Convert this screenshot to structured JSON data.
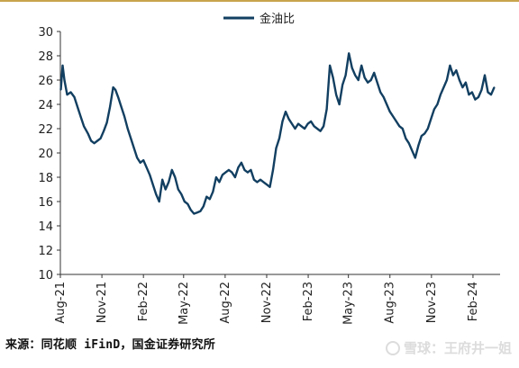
{
  "chart_data": {
    "type": "line",
    "legend_position": "top-center",
    "series": [
      {
        "name": "金油比",
        "color": "#123f61",
        "points": [
          [
            "2021-08-02",
            25.2
          ],
          [
            "2021-08-06",
            27.2
          ],
          [
            "2021-08-10",
            26.0
          ],
          [
            "2021-08-16",
            24.8
          ],
          [
            "2021-08-24",
            25.0
          ],
          [
            "2021-09-01",
            24.6
          ],
          [
            "2021-09-08",
            23.8
          ],
          [
            "2021-09-15",
            23.0
          ],
          [
            "2021-09-22",
            22.2
          ],
          [
            "2021-10-01",
            21.6
          ],
          [
            "2021-10-08",
            21.0
          ],
          [
            "2021-10-15",
            20.8
          ],
          [
            "2021-10-22",
            21.0
          ],
          [
            "2021-10-29",
            21.2
          ],
          [
            "2021-11-05",
            21.8
          ],
          [
            "2021-11-12",
            22.5
          ],
          [
            "2021-11-19",
            23.8
          ],
          [
            "2021-11-26",
            25.4
          ],
          [
            "2021-12-01",
            25.2
          ],
          [
            "2021-12-07",
            24.6
          ],
          [
            "2021-12-14",
            23.8
          ],
          [
            "2021-12-21",
            23.0
          ],
          [
            "2021-12-28",
            22.0
          ],
          [
            "2022-01-04",
            21.2
          ],
          [
            "2022-01-11",
            20.4
          ],
          [
            "2022-01-18",
            19.6
          ],
          [
            "2022-01-25",
            19.2
          ],
          [
            "2022-02-01",
            19.4
          ],
          [
            "2022-02-08",
            18.8
          ],
          [
            "2022-02-15",
            18.2
          ],
          [
            "2022-02-22",
            17.4
          ],
          [
            "2022-03-01",
            16.6
          ],
          [
            "2022-03-08",
            16.0
          ],
          [
            "2022-03-15",
            17.8
          ],
          [
            "2022-03-22",
            17.0
          ],
          [
            "2022-03-29",
            17.6
          ],
          [
            "2022-04-05",
            18.6
          ],
          [
            "2022-04-12",
            18.0
          ],
          [
            "2022-04-19",
            17.0
          ],
          [
            "2022-04-26",
            16.6
          ],
          [
            "2022-05-03",
            16.0
          ],
          [
            "2022-05-10",
            15.8
          ],
          [
            "2022-05-17",
            15.3
          ],
          [
            "2022-05-24",
            15.0
          ],
          [
            "2022-05-31",
            15.1
          ],
          [
            "2022-06-07",
            15.2
          ],
          [
            "2022-06-14",
            15.6
          ],
          [
            "2022-06-21",
            16.4
          ],
          [
            "2022-06-28",
            16.2
          ],
          [
            "2022-07-05",
            16.8
          ],
          [
            "2022-07-12",
            18.0
          ],
          [
            "2022-07-19",
            17.6
          ],
          [
            "2022-07-26",
            18.2
          ],
          [
            "2022-08-02",
            18.4
          ],
          [
            "2022-08-09",
            18.6
          ],
          [
            "2022-08-16",
            18.4
          ],
          [
            "2022-08-23",
            18.0
          ],
          [
            "2022-08-30",
            18.8
          ],
          [
            "2022-09-06",
            19.2
          ],
          [
            "2022-09-13",
            18.6
          ],
          [
            "2022-09-20",
            18.4
          ],
          [
            "2022-09-27",
            18.6
          ],
          [
            "2022-10-04",
            17.8
          ],
          [
            "2022-10-11",
            17.6
          ],
          [
            "2022-10-18",
            17.8
          ],
          [
            "2022-10-25",
            17.6
          ],
          [
            "2022-11-01",
            17.4
          ],
          [
            "2022-11-08",
            17.2
          ],
          [
            "2022-11-15",
            18.6
          ],
          [
            "2022-11-22",
            20.4
          ],
          [
            "2022-11-29",
            21.2
          ],
          [
            "2022-12-06",
            22.6
          ],
          [
            "2022-12-13",
            23.4
          ],
          [
            "2022-12-20",
            22.8
          ],
          [
            "2022-12-27",
            22.4
          ],
          [
            "2023-01-03",
            22.0
          ],
          [
            "2023-01-10",
            22.4
          ],
          [
            "2023-01-17",
            22.2
          ],
          [
            "2023-01-24",
            22.0
          ],
          [
            "2023-01-31",
            22.4
          ],
          [
            "2023-02-07",
            22.6
          ],
          [
            "2023-02-14",
            22.2
          ],
          [
            "2023-02-21",
            22.0
          ],
          [
            "2023-02-28",
            21.8
          ],
          [
            "2023-03-07",
            22.2
          ],
          [
            "2023-03-14",
            23.6
          ],
          [
            "2023-03-21",
            27.2
          ],
          [
            "2023-03-28",
            26.2
          ],
          [
            "2023-04-04",
            24.8
          ],
          [
            "2023-04-11",
            24.0
          ],
          [
            "2023-04-18",
            25.6
          ],
          [
            "2023-04-25",
            26.4
          ],
          [
            "2023-05-02",
            28.2
          ],
          [
            "2023-05-09",
            27.0
          ],
          [
            "2023-05-16",
            26.4
          ],
          [
            "2023-05-23",
            26.0
          ],
          [
            "2023-05-30",
            27.2
          ],
          [
            "2023-06-06",
            26.2
          ],
          [
            "2023-06-13",
            25.8
          ],
          [
            "2023-06-20",
            26.0
          ],
          [
            "2023-06-27",
            26.6
          ],
          [
            "2023-07-04",
            25.8
          ],
          [
            "2023-07-11",
            25.0
          ],
          [
            "2023-07-18",
            24.6
          ],
          [
            "2023-07-25",
            24.0
          ],
          [
            "2023-08-01",
            23.4
          ],
          [
            "2023-08-08",
            23.0
          ],
          [
            "2023-08-15",
            22.6
          ],
          [
            "2023-08-22",
            22.2
          ],
          [
            "2023-08-29",
            22.0
          ],
          [
            "2023-09-05",
            21.2
          ],
          [
            "2023-09-12",
            20.8
          ],
          [
            "2023-09-19",
            20.2
          ],
          [
            "2023-09-26",
            19.6
          ],
          [
            "2023-10-03",
            20.6
          ],
          [
            "2023-10-10",
            21.4
          ],
          [
            "2023-10-17",
            21.6
          ],
          [
            "2023-10-24",
            22.0
          ],
          [
            "2023-10-31",
            22.8
          ],
          [
            "2023-11-07",
            23.6
          ],
          [
            "2023-11-14",
            24.0
          ],
          [
            "2023-11-21",
            24.8
          ],
          [
            "2023-11-28",
            25.4
          ],
          [
            "2023-12-05",
            26.0
          ],
          [
            "2023-12-12",
            27.2
          ],
          [
            "2023-12-19",
            26.4
          ],
          [
            "2023-12-26",
            26.8
          ],
          [
            "2024-01-02",
            26.0
          ],
          [
            "2024-01-09",
            25.4
          ],
          [
            "2024-01-16",
            25.8
          ],
          [
            "2024-01-23",
            24.8
          ],
          [
            "2024-01-30",
            25.0
          ],
          [
            "2024-02-06",
            24.4
          ],
          [
            "2024-02-13",
            24.6
          ],
          [
            "2024-02-20",
            25.2
          ],
          [
            "2024-02-27",
            26.4
          ],
          [
            "2024-03-05",
            25.0
          ],
          [
            "2024-03-12",
            24.8
          ],
          [
            "2024-03-19",
            25.4
          ]
        ]
      }
    ],
    "x_ticks": [
      "Aug-21",
      "Nov-21",
      "Feb-22",
      "May-22",
      "Aug-22",
      "Nov-22",
      "Feb-23",
      "May-23",
      "Aug-23",
      "Nov-23",
      "Feb-24"
    ],
    "y_ticks": [
      10,
      12,
      14,
      16,
      18,
      20,
      22,
      24,
      26,
      28,
      30
    ],
    "ylim": [
      10,
      30
    ],
    "grid": false
  },
  "source_text": "来源：同花顺 iFinD，国金证券研究所",
  "watermark_text": "雪球：王府井一姐"
}
